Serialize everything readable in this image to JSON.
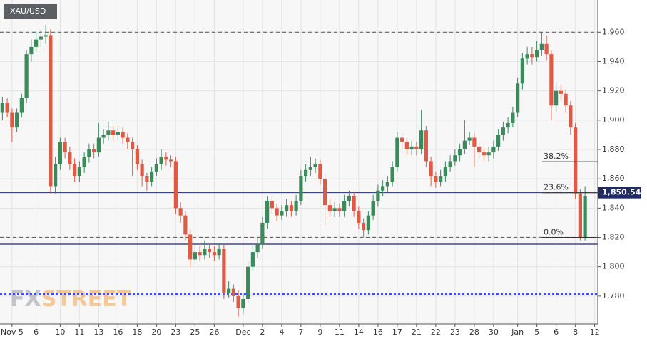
{
  "chart_data": {
    "type": "candlestick",
    "title": "XAU/USD",
    "watermark": [
      "FX",
      "STREET"
    ],
    "categories": [
      null,
      null,
      "Nov 5",
      null,
      null,
      null,
      null,
      "6",
      null,
      null,
      null,
      null,
      "10",
      null,
      null,
      null,
      "11",
      null,
      null,
      null,
      "13",
      null,
      null,
      null,
      "16",
      null,
      null,
      null,
      "18",
      null,
      null,
      null,
      "20",
      null,
      null,
      null,
      "23",
      null,
      null,
      null,
      "25",
      null,
      null,
      null,
      "26",
      null,
      null,
      null,
      null,
      null,
      "Dec",
      null,
      null,
      null,
      "2",
      null,
      null,
      null,
      "4",
      null,
      null,
      null,
      "7",
      null,
      null,
      null,
      "9",
      null,
      null,
      null,
      "11",
      null,
      null,
      null,
      "14",
      null,
      null,
      null,
      "16",
      null,
      null,
      null,
      "17",
      null,
      null,
      null,
      "21",
      null,
      null,
      null,
      "22",
      null,
      null,
      null,
      "23",
      null,
      null,
      null,
      "28",
      null,
      null,
      null,
      "30",
      null,
      null,
      null,
      null,
      "Jan",
      null,
      null,
      null,
      "5",
      null,
      null,
      null,
      "6",
      null,
      null,
      null,
      "8",
      null,
      null,
      null,
      "12"
    ],
    "values": [
      [
        1905,
        1916,
        1900,
        1912
      ],
      [
        1912,
        1915,
        1902,
        1905
      ],
      [
        1905,
        1908,
        1885,
        1895
      ],
      [
        1895,
        1908,
        1892,
        1905
      ],
      [
        1905,
        1918,
        1902,
        1915
      ],
      [
        1915,
        1948,
        1912,
        1945
      ],
      [
        1945,
        1955,
        1940,
        1950
      ],
      [
        1950,
        1960,
        1946,
        1955
      ],
      [
        1955,
        1962,
        1950,
        1957
      ],
      [
        1957,
        1965,
        1952,
        1958
      ],
      [
        1958,
        1962,
        1850,
        1855
      ],
      [
        1855,
        1875,
        1850,
        1870
      ],
      [
        1870,
        1888,
        1866,
        1885
      ],
      [
        1885,
        1888,
        1874,
        1878
      ],
      [
        1878,
        1882,
        1866,
        1870
      ],
      [
        1870,
        1874,
        1858,
        1862
      ],
      [
        1862,
        1872,
        1858,
        1868
      ],
      [
        1868,
        1878,
        1864,
        1875
      ],
      [
        1875,
        1884,
        1871,
        1880
      ],
      [
        1880,
        1884,
        1874,
        1878
      ],
      [
        1878,
        1898,
        1875,
        1888
      ],
      [
        1888,
        1894,
        1884,
        1890
      ],
      [
        1890,
        1899,
        1886,
        1893
      ],
      [
        1893,
        1896,
        1886,
        1890
      ],
      [
        1890,
        1896,
        1887,
        1892
      ],
      [
        1892,
        1895,
        1884,
        1888
      ],
      [
        1888,
        1891,
        1880,
        1885
      ],
      [
        1885,
        1888,
        1862,
        1880
      ],
      [
        1880,
        1883,
        1866,
        1870
      ],
      [
        1870,
        1873,
        1855,
        1862
      ],
      [
        1862,
        1864,
        1852,
        1858
      ],
      [
        1858,
        1868,
        1855,
        1865
      ],
      [
        1865,
        1874,
        1862,
        1870
      ],
      [
        1870,
        1880,
        1866,
        1875
      ],
      [
        1875,
        1878,
        1869,
        1873
      ],
      [
        1873,
        1876,
        1868,
        1872
      ],
      [
        1872,
        1875,
        1836,
        1840
      ],
      [
        1840,
        1844,
        1830,
        1835
      ],
      [
        1835,
        1838,
        1818,
        1822
      ],
      [
        1822,
        1826,
        1800,
        1805
      ],
      [
        1805,
        1815,
        1802,
        1810
      ],
      [
        1810,
        1814,
        1804,
        1808
      ],
      [
        1808,
        1818,
        1805,
        1812
      ],
      [
        1812,
        1816,
        1806,
        1810
      ],
      [
        1810,
        1814,
        1804,
        1808
      ],
      [
        1808,
        1816,
        1805,
        1812
      ],
      [
        1812,
        1815,
        1778,
        1782
      ],
      [
        1782,
        1790,
        1779,
        1785
      ],
      [
        1785,
        1788,
        1776,
        1780
      ],
      [
        1780,
        1784,
        1766,
        1772
      ],
      [
        1772,
        1782,
        1768,
        1778
      ],
      [
        1778,
        1804,
        1775,
        1800
      ],
      [
        1800,
        1814,
        1797,
        1810
      ],
      [
        1810,
        1820,
        1806,
        1815
      ],
      [
        1815,
        1834,
        1812,
        1830
      ],
      [
        1830,
        1848,
        1826,
        1845
      ],
      [
        1845,
        1848,
        1836,
        1840
      ],
      [
        1840,
        1843,
        1831,
        1835
      ],
      [
        1835,
        1842,
        1832,
        1838
      ],
      [
        1838,
        1846,
        1834,
        1842
      ],
      [
        1842,
        1845,
        1834,
        1838
      ],
      [
        1838,
        1849,
        1835,
        1845
      ],
      [
        1845,
        1866,
        1842,
        1862
      ],
      [
        1862,
        1870,
        1858,
        1866
      ],
      [
        1866,
        1875,
        1862,
        1868
      ],
      [
        1868,
        1874,
        1864,
        1870
      ],
      [
        1870,
        1873,
        1856,
        1860
      ],
      [
        1860,
        1863,
        1828,
        1842
      ],
      [
        1842,
        1846,
        1834,
        1838
      ],
      [
        1838,
        1844,
        1834,
        1840
      ],
      [
        1840,
        1843,
        1834,
        1838
      ],
      [
        1838,
        1849,
        1834,
        1845
      ],
      [
        1845,
        1852,
        1841,
        1848
      ],
      [
        1848,
        1851,
        1834,
        1838
      ],
      [
        1838,
        1841,
        1826,
        1830
      ],
      [
        1830,
        1833,
        1820,
        1825
      ],
      [
        1825,
        1838,
        1822,
        1835
      ],
      [
        1835,
        1849,
        1832,
        1845
      ],
      [
        1845,
        1856,
        1841,
        1852
      ],
      [
        1852,
        1859,
        1848,
        1855
      ],
      [
        1855,
        1862,
        1851,
        1858
      ],
      [
        1858,
        1872,
        1855,
        1868
      ],
      [
        1868,
        1892,
        1865,
        1888
      ],
      [
        1888,
        1891,
        1880,
        1885
      ],
      [
        1885,
        1888,
        1876,
        1880
      ],
      [
        1880,
        1886,
        1876,
        1882
      ],
      [
        1882,
        1885,
        1876,
        1880
      ],
      [
        1880,
        1907,
        1877,
        1893
      ],
      [
        1893,
        1896,
        1868,
        1872
      ],
      [
        1872,
        1875,
        1855,
        1862
      ],
      [
        1862,
        1865,
        1854,
        1858
      ],
      [
        1858,
        1866,
        1855,
        1862
      ],
      [
        1862,
        1872,
        1858,
        1868
      ],
      [
        1868,
        1876,
        1865,
        1872
      ],
      [
        1872,
        1880,
        1869,
        1876
      ],
      [
        1876,
        1884,
        1872,
        1880
      ],
      [
        1880,
        1900,
        1877,
        1886
      ],
      [
        1886,
        1892,
        1883,
        1888
      ],
      [
        1888,
        1891,
        1868,
        1882
      ],
      [
        1882,
        1885,
        1874,
        1878
      ],
      [
        1878,
        1881,
        1872,
        1876
      ],
      [
        1876,
        1882,
        1872,
        1878
      ],
      [
        1878,
        1886,
        1874,
        1882
      ],
      [
        1882,
        1894,
        1879,
        1890
      ],
      [
        1890,
        1899,
        1886,
        1895
      ],
      [
        1895,
        1902,
        1891,
        1898
      ],
      [
        1898,
        1909,
        1895,
        1905
      ],
      [
        1905,
        1929,
        1902,
        1925
      ],
      [
        1925,
        1946,
        1921,
        1942
      ],
      [
        1942,
        1950,
        1938,
        1945
      ],
      [
        1945,
        1950,
        1938,
        1943
      ],
      [
        1943,
        1954,
        1940,
        1948
      ],
      [
        1948,
        1960,
        1944,
        1952
      ],
      [
        1952,
        1958,
        1941,
        1945
      ],
      [
        1945,
        1948,
        1900,
        1910
      ],
      [
        1910,
        1926,
        1906,
        1920
      ],
      [
        1920,
        1924,
        1913,
        1918
      ],
      [
        1918,
        1921,
        1905,
        1910
      ],
      [
        1910,
        1913,
        1890,
        1895
      ],
      [
        1895,
        1898,
        1846,
        1850
      ],
      [
        1850,
        1853,
        1818,
        1820
      ],
      [
        1820,
        1855,
        1818,
        1848
      ],
      null,
      null
    ],
    "up_color": "#3a8a5c",
    "down_color": "#dd5a44",
    "ylim": [
      1761,
      1982
    ],
    "yticks": [
      {
        "value": 1780,
        "label": "1,780"
      },
      {
        "value": 1800,
        "label": "1,800"
      },
      {
        "value": 1820,
        "label": "1,820"
      },
      {
        "value": 1840,
        "label": "1,840"
      },
      {
        "value": 1860,
        "label": "1,860"
      },
      {
        "value": 1880,
        "label": "1,880"
      },
      {
        "value": 1900,
        "label": "1,900"
      },
      {
        "value": 1920,
        "label": "1,920"
      },
      {
        "value": 1940,
        "label": "1,940"
      },
      {
        "value": 1960,
        "label": "1,960"
      }
    ],
    "grid": true,
    "lines": [
      {
        "value": 1960,
        "style": "dashed",
        "color": "#666666"
      },
      {
        "value": 1820,
        "style": "dashed",
        "color": "#666666"
      },
      {
        "value": 1815.4,
        "style": "solid",
        "color": "#1f2a66"
      },
      {
        "value": 1781.4,
        "style": "dotted",
        "color": "#3b4cff"
      }
    ],
    "fib_levels": [
      {
        "label": "38.2%",
        "value": 1871.7
      },
      {
        "label": "23.6%",
        "value": 1850.5
      },
      {
        "label": "0.0%",
        "value": 1820
      }
    ],
    "price": {
      "value": 1850.54,
      "label": "1,850.54",
      "color": "#1f2a66"
    }
  }
}
